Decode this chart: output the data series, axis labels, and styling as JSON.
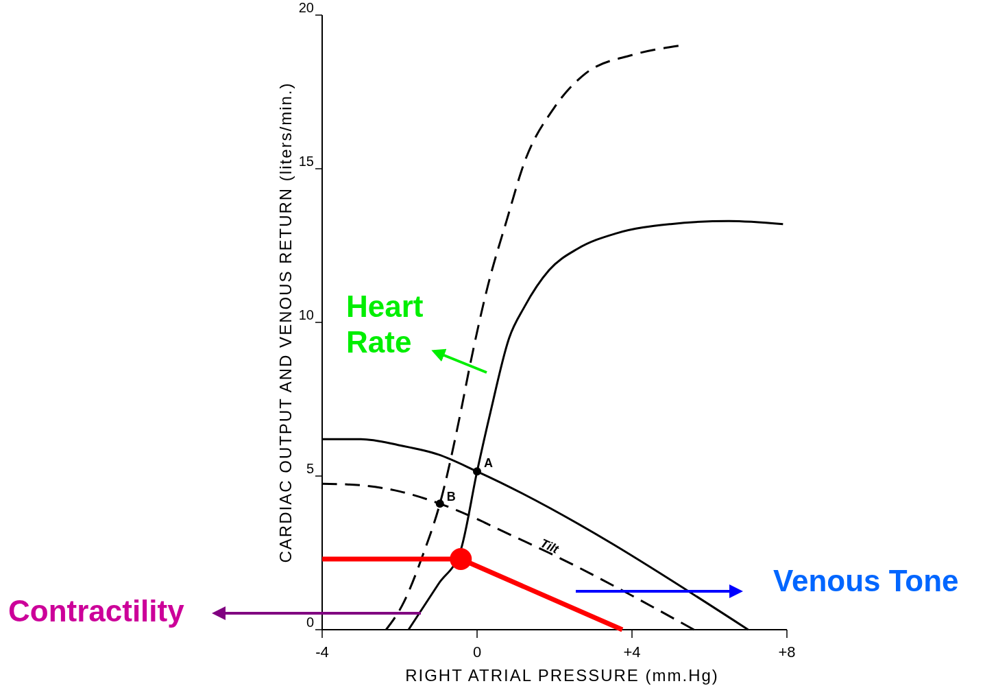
{
  "chart_data": {
    "type": "line",
    "xlabel": "RIGHT ATRIAL PRESSURE (mm.Hg)",
    "ylabel": "CARDIAC OUTPUT AND VENOUS RETURN (liters/min.)",
    "xlim": [
      -4,
      8
    ],
    "xticks": [
      -4,
      0,
      {
        "value": 4,
        "label": "+4"
      },
      {
        "value": 8,
        "label": "+8"
      }
    ],
    "ylim": [
      0,
      20
    ],
    "yticks": [
      0,
      5,
      10,
      15,
      20
    ],
    "series": [
      {
        "color": "#000000",
        "line_style": "solid",
        "x": [
          -1.77,
          -0.99,
          -0.42,
          0,
          0.35,
          0.83,
          1.22,
          1.86,
          2.6,
          3.6,
          5,
          6.5,
          7.9
        ],
        "values": [
          0,
          1.5,
          2.6,
          5.15,
          7.1,
          9.5,
          10.5,
          11.7,
          12.4,
          12.9,
          13.2,
          13.3,
          13.2
        ]
      },
      {
        "color": "#000000",
        "line_style": "dashed",
        "x": [
          -2.35,
          -1.93,
          -1.38,
          -0.96,
          -0.42,
          -0.2,
          0.28,
          0.76,
          1.22,
          2.0,
          2.8,
          4.0,
          5.2
        ],
        "values": [
          0,
          0.8,
          2.5,
          4.1,
          7.1,
          8.5,
          11.2,
          13.3,
          15.2,
          17.0,
          18.1,
          18.7,
          19.0
        ]
      },
      {
        "color": "#000000",
        "line_style": "solid",
        "x": [
          -4,
          -3,
          -2,
          -1,
          0,
          7.0
        ],
        "values": [
          6.2,
          6.2,
          6.0,
          5.7,
          5.15,
          0
        ]
      },
      {
        "color": "#000000",
        "line_style": "dashed",
        "x": [
          -4,
          -3,
          -2,
          -0.96,
          0,
          0.5,
          1.86,
          5.6
        ],
        "values": [
          4.75,
          4.7,
          4.5,
          4.1,
          3.6,
          3.3,
          2.5,
          0
        ]
      },
      {
        "color": "#ff0000",
        "line_style": "solid",
        "x": [
          -4,
          -0.42,
          3.75
        ],
        "values": [
          2.3,
          2.3,
          0
        ]
      },
      {
        "type": "bubble",
        "color": "#ff0000",
        "x": [
          -0.42
        ],
        "values": [
          2.3
        ],
        "sizes": [
          1
        ]
      },
      {
        "type": "scatter",
        "color": "#000000",
        "marker": "circle",
        "x": [
          0,
          -0.96
        ],
        "values": [
          5.15,
          4.1
        ]
      }
    ],
    "annotations": [
      {
        "text": "A",
        "x": 0,
        "y": 5.15
      },
      {
        "text": "B",
        "x": -0.96,
        "y": 4.1
      },
      {
        "text": "Tilt",
        "x": 1.86,
        "y": 2.5
      },
      "Heart Rate",
      "Contractility",
      "Venous Tone"
    ]
  }
}
